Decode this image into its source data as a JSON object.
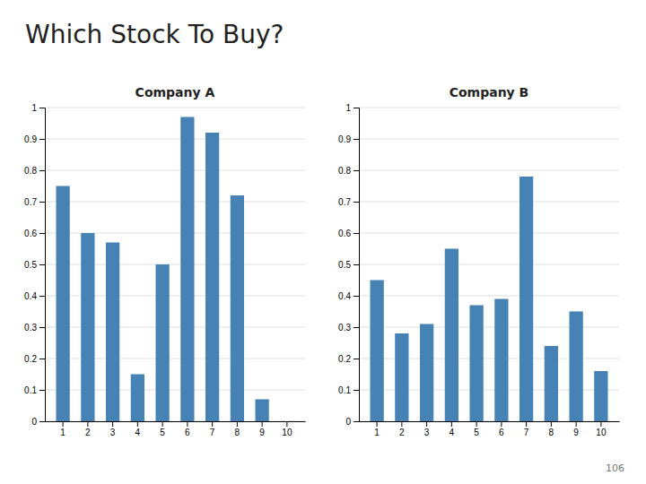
{
  "title": "Which Stock To Buy?",
  "annotations": [
    "106"
  ],
  "chart_data": [
    {
      "type": "bar",
      "title": "Company A",
      "categories": [
        "1",
        "2",
        "3",
        "4",
        "5",
        "6",
        "7",
        "8",
        "9",
        "10"
      ],
      "values": [
        0.75,
        0.6,
        0.57,
        0.15,
        0.5,
        0.97,
        0.92,
        0.72,
        0.07,
        0.0
      ],
      "color": "#4682b4",
      "ylim": [
        0,
        1.0
      ],
      "yticks": [
        0,
        0.1,
        0.2,
        0.3,
        0.4,
        0.5,
        0.6,
        0.7,
        0.8,
        0.9,
        1
      ],
      "grid": true
    },
    {
      "type": "bar",
      "title": "Company B",
      "categories": [
        "1",
        "2",
        "3",
        "4",
        "5",
        "6",
        "7",
        "8",
        "9",
        "10"
      ],
      "values": [
        0.45,
        0.28,
        0.31,
        0.55,
        0.37,
        0.39,
        0.78,
        0.24,
        0.35,
        0.16
      ],
      "color": "#4682b4",
      "ylim": [
        0,
        1.0
      ],
      "yticks": [
        0,
        0.1,
        0.2,
        0.3,
        0.4,
        0.5,
        0.6,
        0.7,
        0.8,
        0.9,
        1
      ],
      "grid": true
    }
  ]
}
